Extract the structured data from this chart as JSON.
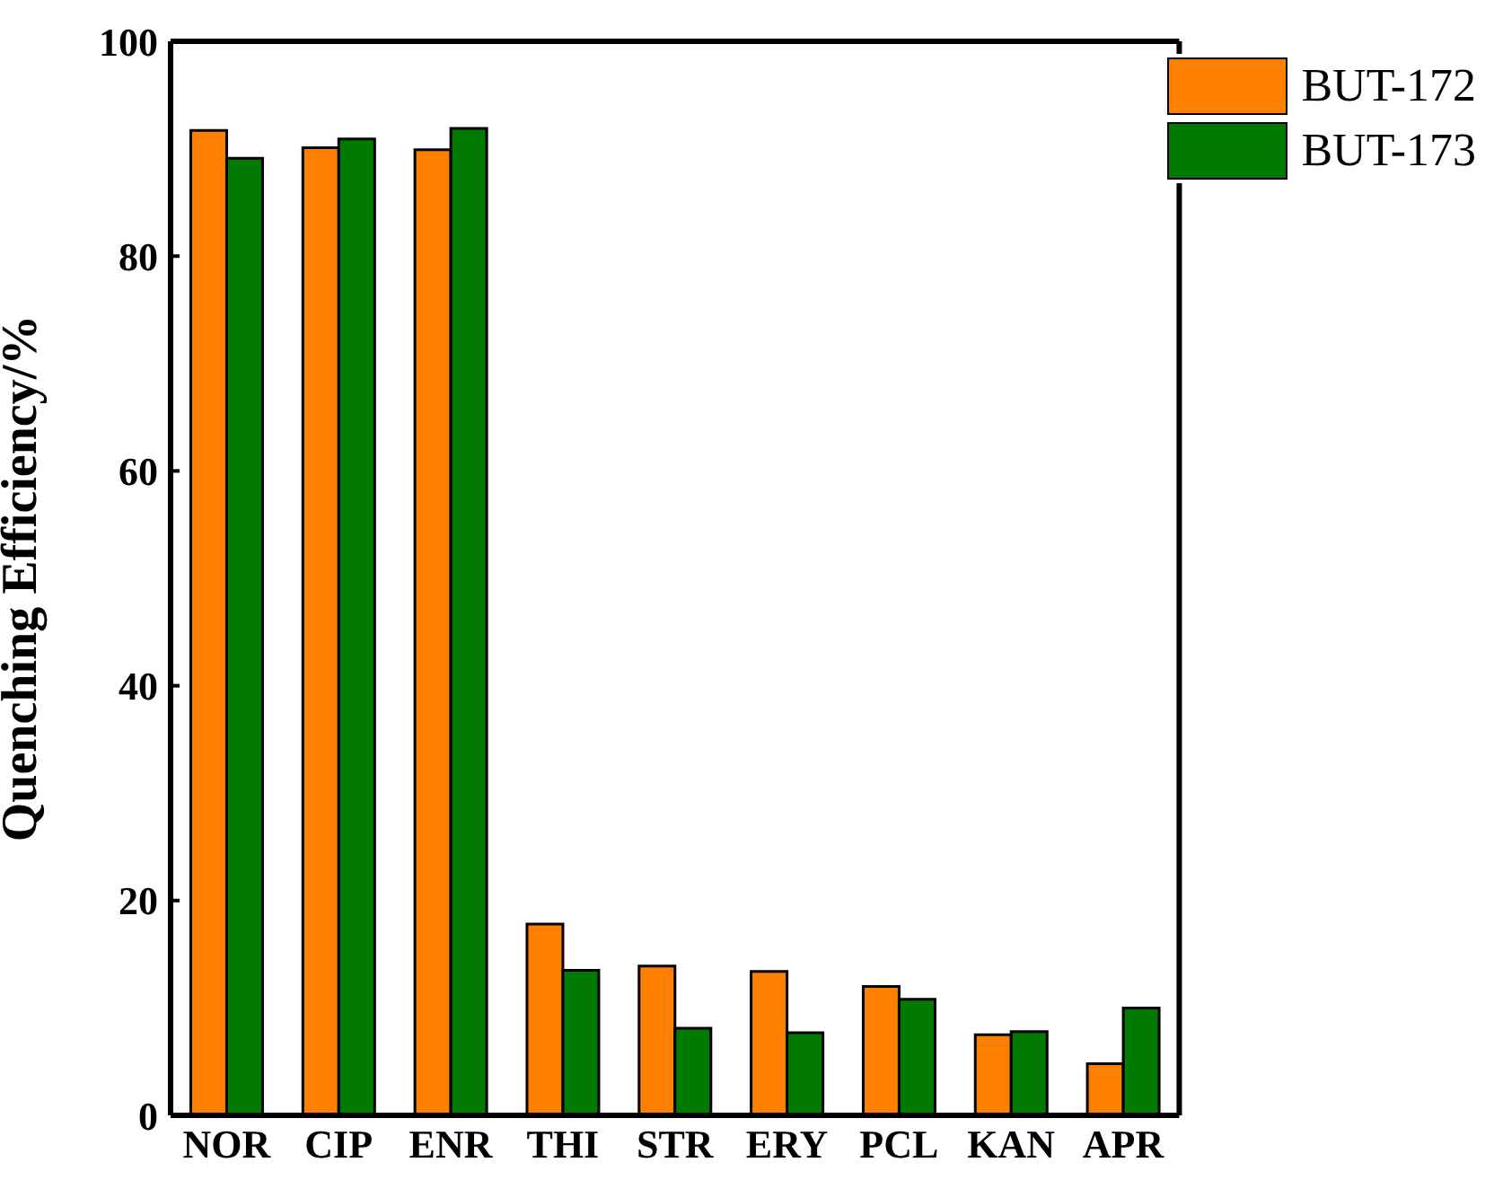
{
  "chart_data": {
    "type": "bar",
    "ylabel": "Quenching Efficiency/%",
    "categories": [
      "NOR",
      "CIP",
      "ENR",
      "THI",
      "STR",
      "ERY",
      "PCL",
      "KAN",
      "APR"
    ],
    "series": [
      {
        "name": "BUT-172",
        "color": "#ff8000",
        "values": [
          91.7,
          90.1,
          89.9,
          17.8,
          13.9,
          13.4,
          12.0,
          7.5,
          4.8
        ]
      },
      {
        "name": "BUT-173",
        "color": "#007a00",
        "values": [
          89.1,
          90.9,
          91.9,
          13.5,
          8.1,
          7.7,
          10.8,
          7.8,
          10.0
        ]
      }
    ],
    "ylim": [
      0,
      100
    ],
    "yticks": [
      0,
      20,
      40,
      60,
      80,
      100
    ],
    "grid": false,
    "legend": "top right"
  }
}
